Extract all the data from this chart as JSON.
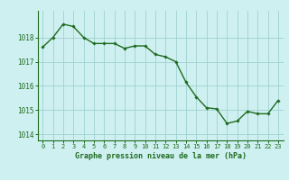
{
  "x": [
    0,
    1,
    2,
    3,
    4,
    5,
    6,
    7,
    8,
    9,
    10,
    11,
    12,
    13,
    14,
    15,
    16,
    17,
    18,
    19,
    20,
    21,
    22,
    23
  ],
  "y": [
    1017.6,
    1018.0,
    1018.55,
    1018.45,
    1018.0,
    1017.75,
    1017.75,
    1017.75,
    1017.55,
    1017.65,
    1017.65,
    1017.3,
    1017.2,
    1017.0,
    1016.15,
    1015.55,
    1015.1,
    1015.05,
    1014.45,
    1014.55,
    1014.95,
    1014.85,
    1014.85,
    1015.4
  ],
  "line_color": "#1e6b1e",
  "marker": "D",
  "marker_size": 1.8,
  "bg_color": "#cff0f0",
  "grid_color": "#a0d0d0",
  "xlabel": "Graphe pression niveau de la mer (hPa)",
  "xlabel_color": "#1e6b1e",
  "tick_color": "#1e6b1e",
  "ylim": [
    1013.75,
    1019.1
  ],
  "xlim": [
    -0.5,
    23.5
  ],
  "yticks": [
    1014,
    1015,
    1016,
    1017,
    1018
  ],
  "xticks": [
    0,
    1,
    2,
    3,
    4,
    5,
    6,
    7,
    8,
    9,
    10,
    11,
    12,
    13,
    14,
    15,
    16,
    17,
    18,
    19,
    20,
    21,
    22,
    23
  ],
  "xtick_labels": [
    "0",
    "1",
    "2",
    "3",
    "4",
    "5",
    "6",
    "7",
    "8",
    "9",
    "10",
    "11",
    "12",
    "13",
    "14",
    "15",
    "16",
    "17",
    "18",
    "19",
    "20",
    "21",
    "22",
    "23"
  ],
  "line_width": 1.0,
  "tick_fontsize": 5.0,
  "ytick_fontsize": 5.5,
  "xlabel_fontsize": 6.0
}
